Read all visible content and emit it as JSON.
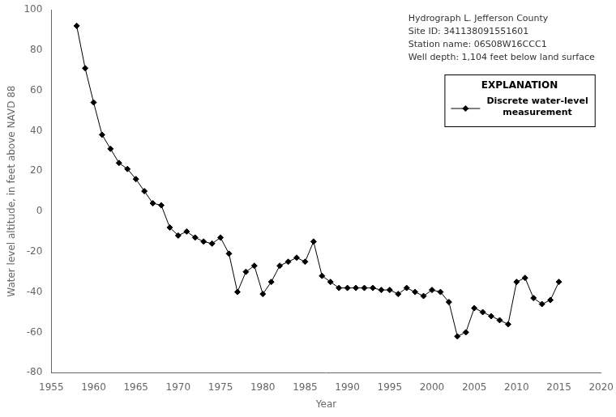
{
  "chart_data": {
    "type": "line",
    "x": [
      1958,
      1959,
      1960,
      1961,
      1962,
      1963,
      1964,
      1965,
      1966,
      1967,
      1968,
      1969,
      1970,
      1971,
      1972,
      1973,
      1974,
      1975,
      1976,
      1977,
      1978,
      1979,
      1980,
      1981,
      1982,
      1983,
      1984,
      1985,
      1986,
      1987,
      1988,
      1989,
      1990,
      1991,
      1992,
      1993,
      1994,
      1995,
      1996,
      1997,
      1998,
      1999,
      2000,
      2001,
      2002,
      2003,
      2004,
      2005,
      2006,
      2007,
      2008,
      2009,
      2010,
      2011,
      2012,
      2013,
      2014,
      2015
    ],
    "series": [
      {
        "name": "Discrete water-level\nmeasurement",
        "color": "black",
        "marker": "diamond",
        "values": [
          92,
          71,
          54,
          38,
          31,
          24,
          21,
          16,
          10,
          4,
          3,
          -8,
          -12,
          -10,
          -13,
          -15,
          -16,
          -13,
          -21,
          -40,
          -30,
          -27,
          -41,
          -35,
          -27,
          -25,
          -23,
          -25,
          -15,
          -32,
          -35,
          -38,
          -38,
          -38,
          -38,
          -38,
          -39,
          -39,
          -41,
          -38,
          -40,
          -42,
          -39,
          -40,
          -45,
          -62,
          -60,
          -48,
          -50,
          -52,
          -54,
          -56,
          -35,
          -33,
          -43,
          -46,
          -44,
          -35
        ]
      }
    ],
    "xlabel": "Year",
    "ylabel": "Water level altitude, in feet above NAVD 88",
    "xlim": [
      1955,
      2020
    ],
    "ylim": [
      -80,
      100
    ],
    "xticks": [
      1955,
      1960,
      1965,
      1970,
      1975,
      1980,
      1985,
      1990,
      1995,
      2000,
      2005,
      2010,
      2015,
      2020
    ],
    "yticks": [
      -80,
      -60,
      -40,
      -20,
      0,
      20,
      40,
      60,
      80,
      100
    ],
    "annotations": [
      "Hydrograph L. Jefferson County\nSite ID: 341138091551601\nStation name: 06S08W16CCC1\nWell depth: 1,104 feet below land surface"
    ],
    "legend_title": "EXPLANATION",
    "legend": "upper right",
    "grid": false
  }
}
